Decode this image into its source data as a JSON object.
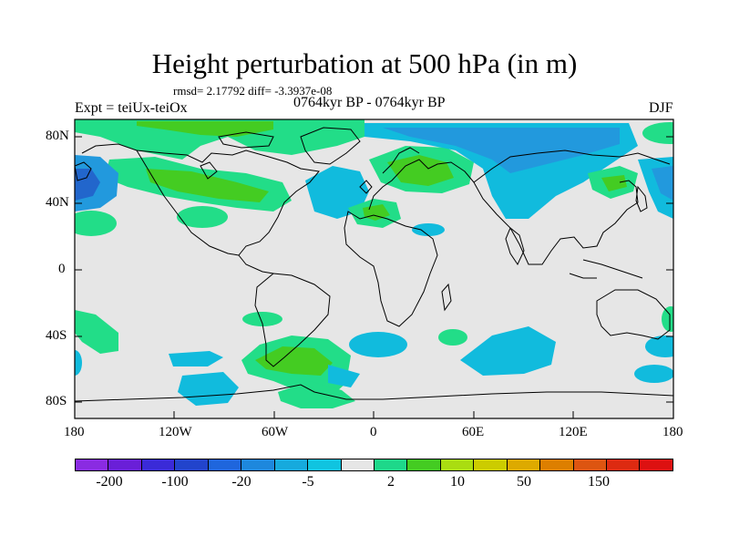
{
  "figure": {
    "title": "Height perturbation at 500 hPa (in m)",
    "stats_line": "rmsd= 2.17792  diff= -3.3937e-08",
    "left_label": "Expt = teiUx-teiOx",
    "center_label": "0764kyr BP - 0764kyr BP",
    "right_label": "DJF"
  },
  "axes": {
    "y_ticks": [
      "80N",
      "40N",
      "0",
      "40S",
      "80S"
    ],
    "x_ticks": [
      "180",
      "120W",
      "60W",
      "0",
      "60E",
      "120E",
      "180"
    ]
  },
  "colors": {
    "background_neutral": "#e6e6e6",
    "pos_light": "#22dd88",
    "pos_mid": "#44cc22",
    "neg_light": "#11bbdd",
    "neg_mid": "#2299dd",
    "neg_dark": "#2266cc"
  },
  "colorbar": {
    "colors": [
      "#8a2be2",
      "#6a1fd8",
      "#3a2ad8",
      "#2244cc",
      "#1f66dd",
      "#1e88dd",
      "#16aadd",
      "#10c4e0",
      "#e6e6e6",
      "#1ed88a",
      "#44cc22",
      "#aadd11",
      "#cccc00",
      "#ddaa00",
      "#dd7f00",
      "#dd5511",
      "#dd2a11",
      "#dd1111"
    ],
    "labels": [
      "-200",
      "-100",
      "-20",
      "-5",
      "2",
      "10",
      "50",
      "150"
    ]
  }
}
